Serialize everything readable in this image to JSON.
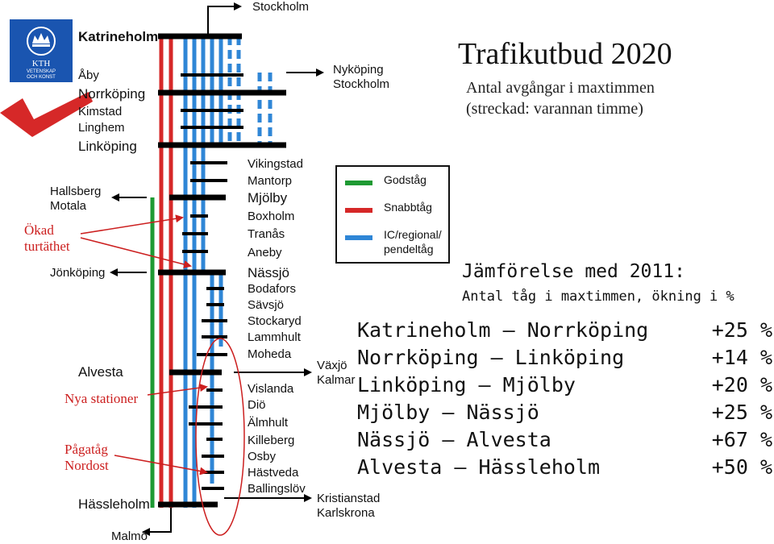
{
  "header": {
    "title": "Trafikutbud 2020",
    "subtitle_line1": "Antal avgångar i maxtimmen",
    "subtitle_line2": "(streckad: varannan timme)"
  },
  "logo": {
    "text1": "KTH",
    "text2": "VETENSKAP",
    "text3": "OCH KONST",
    "brand_color": "#1a55b0",
    "accent_color": "#d62828"
  },
  "stations": {
    "stockholm_top": "Stockholm",
    "katrineholm": "Katrineholm",
    "aby": "Åby",
    "norrkoping": "Norrköping",
    "kimstad": "Kimstad",
    "linghem": "Linghem",
    "linkoping": "Linköping",
    "vikingstad": "Vikingstad",
    "mantorp": "Mantorp",
    "mjolby": "Mjölby",
    "boxholm": "Boxholm",
    "tranas": "Tranås",
    "aneby": "Aneby",
    "nassjo": "Nässjö",
    "bodafors": "Bodafors",
    "savsjo": "Sävsjö",
    "stockaryd": "Stockaryd",
    "lammhult": "Lammhult",
    "moheda": "Moheda",
    "alvesta": "Alvesta",
    "vislanda": "Vislanda",
    "dio": "Diö",
    "almhult": "Älmhult",
    "killeberg": "Killeberg",
    "osby": "Osby",
    "hastveda": "Hästveda",
    "ballingslov": "Ballingslöv",
    "hassleholm": "Hässleholm",
    "malmo": "Malmö"
  },
  "branches": {
    "nykoping": "Nyköping",
    "stockholm": "Stockholm",
    "hallsberg": "Hallsberg",
    "motala": "Motala",
    "jonkoping": "Jönköping",
    "vaxjo": "Växjö",
    "kalmar": "Kalmar",
    "kristianstad": "Kristianstad",
    "karlskrona": "Karlskrona"
  },
  "notes": {
    "okad1": "Ökad",
    "okad2": "turtäthet",
    "nya_stationer": "Nya stationer",
    "pagatag1": "Pågatåg",
    "pagatag2": "Nordost"
  },
  "legend": {
    "items": [
      {
        "label1": "Godståg",
        "label2": "",
        "color": "#1e9a33"
      },
      {
        "label1": "Snabbtåg",
        "label2": "",
        "color": "#d62828"
      },
      {
        "label1": "IC/regional/",
        "label2": "pendeltåg",
        "color": "#2f86d6"
      }
    ]
  },
  "comparison": {
    "heading": "Jämförelse med 2011:",
    "subheading": "Antal tåg i maxtimmen, ökning i %",
    "rows": [
      {
        "route": "Katrineholm – Norrköping",
        "increase": "+25 %"
      },
      {
        "route": "Norrköping – Linköping",
        "increase": "+14 %"
      },
      {
        "route": "Linköping – Mjölby",
        "increase": "+20 %"
      },
      {
        "route": "Mjölby – Nässjö",
        "increase": "+25 %"
      },
      {
        "route": "Nässjö – Alvesta",
        "increase": "+67 %"
      },
      {
        "route": "Alvesta – Hässleholm",
        "increase": "+50 %"
      }
    ]
  },
  "colors": {
    "freight": "#1e9a33",
    "fast": "#d62828",
    "regional": "#2f86d6",
    "note_red": "#cc1f1f"
  }
}
